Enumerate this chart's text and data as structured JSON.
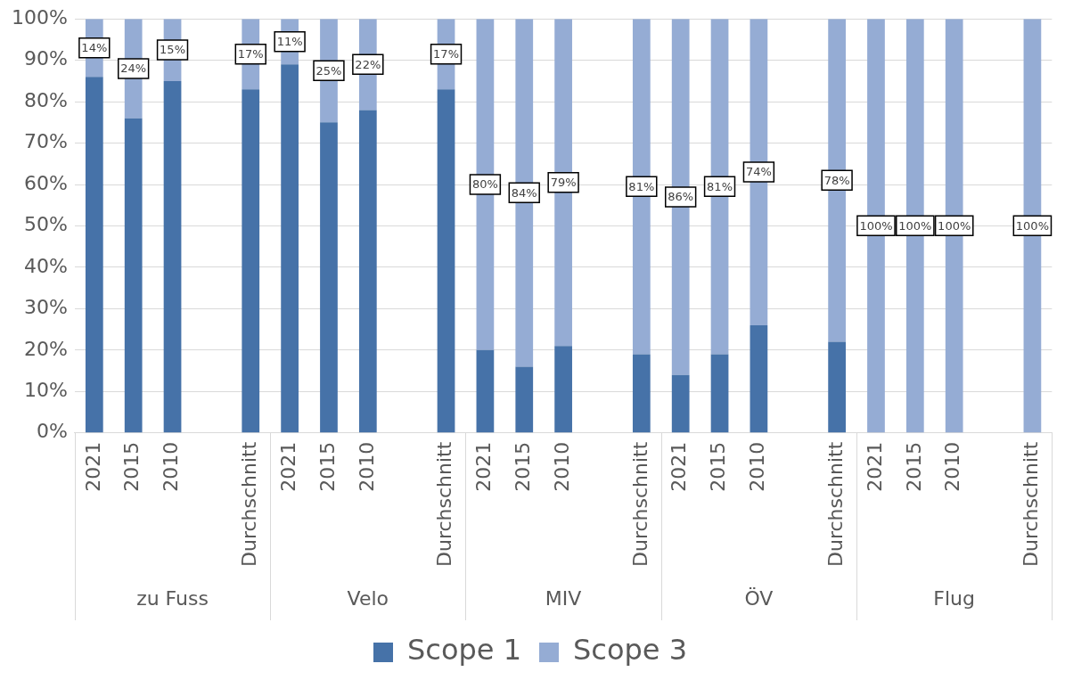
{
  "chart_data": {
    "type": "bar",
    "stacked": true,
    "categories": [
      "2021",
      "2015",
      "2010",
      null,
      "Durchschnitt",
      "2021",
      "2015",
      "2010",
      null,
      "Durchschnitt",
      "2021",
      "2015",
      "2010",
      null,
      "Durchschnitt",
      "2021",
      "2015",
      "2010",
      null,
      "Durchschnitt",
      "2021",
      "2015",
      "2010",
      null,
      "Durchschnitt"
    ],
    "annotations": [
      "zu Fuss",
      "Velo",
      "MIV",
      "ÖV",
      "Flug"
    ],
    "series": [
      {
        "name": "Scope 1",
        "color": "#4672a8",
        "values": [
          86,
          76,
          85,
          null,
          83,
          89,
          75,
          78,
          null,
          83,
          20,
          16,
          21,
          null,
          19,
          14,
          19,
          26,
          null,
          22,
          0,
          0,
          0,
          null,
          0
        ]
      },
      {
        "name": "Scope 3",
        "color": "#95acd4",
        "values": [
          14,
          24,
          15,
          null,
          17,
          11,
          25,
          22,
          null,
          17,
          80,
          84,
          79,
          null,
          81,
          86,
          81,
          74,
          null,
          78,
          100,
          100,
          100,
          null,
          100
        ],
        "value_labels": [
          "14%",
          "24%",
          "15%",
          null,
          "17%",
          "11%",
          "25%",
          "22%",
          null,
          "17%",
          "80%",
          "84%",
          "79%",
          null,
          "81%",
          "86%",
          "81%",
          "74%",
          null,
          "78%",
          "100%",
          "100%",
          "100%",
          null,
          "100%"
        ]
      }
    ],
    "ylim": [
      0,
      100
    ],
    "yticks": [
      {
        "value": 0,
        "label": "0%"
      },
      {
        "value": 10,
        "label": "10%"
      },
      {
        "value": 20,
        "label": "20%"
      },
      {
        "value": 30,
        "label": "30%"
      },
      {
        "value": 40,
        "label": "40%"
      },
      {
        "value": 50,
        "label": "50%"
      },
      {
        "value": 60,
        "label": "60%"
      },
      {
        "value": 70,
        "label": "70%"
      },
      {
        "value": 80,
        "label": "80%"
      },
      {
        "value": 90,
        "label": "90%"
      },
      {
        "value": 100,
        "label": "100%"
      }
    ],
    "grid": "y",
    "legend": "bottom"
  }
}
